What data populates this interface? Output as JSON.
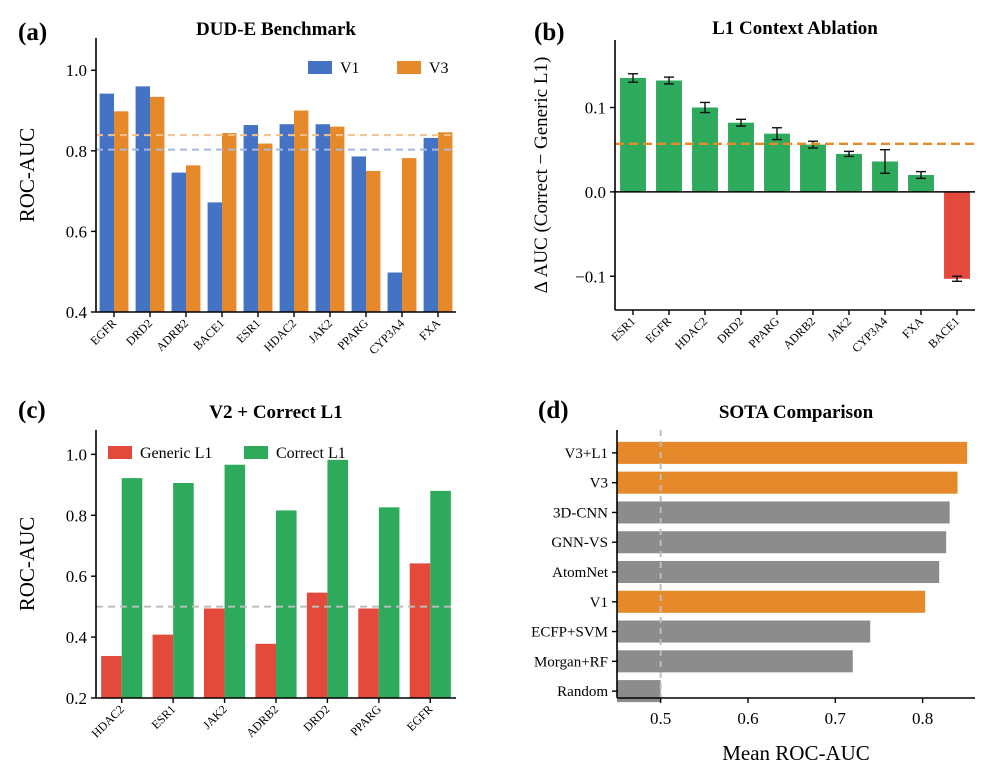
{
  "chart_data": [
    {
      "panel": "(a)",
      "type": "bar",
      "title": "DUD-E Benchmark",
      "xlabel": "",
      "ylabel": "ROC-AUC",
      "ylim": [
        0.4,
        1.08
      ],
      "yticks": [
        0.4,
        0.6,
        0.8,
        1.0
      ],
      "categories": [
        "EGFR",
        "DRD2",
        "ADRB2",
        "BACE1",
        "ESR1",
        "HDAC2",
        "JAK2",
        "PPARG",
        "CYP3A4",
        "FXA"
      ],
      "series": [
        {
          "name": "V1",
          "color": "#4472c4",
          "values": [
            0.942,
            0.96,
            0.746,
            0.672,
            0.864,
            0.866,
            0.866,
            0.786,
            0.498,
            0.832
          ]
        },
        {
          "name": "V3",
          "color": "#e6892a",
          "values": [
            0.898,
            0.934,
            0.764,
            0.844,
            0.818,
            0.9,
            0.86,
            0.75,
            0.782,
            0.846
          ]
        }
      ],
      "reference_lines": [
        {
          "value": 0.803,
          "color": "#a9b9dd"
        },
        {
          "value": 0.839,
          "color": "#f2c28f"
        }
      ],
      "legend_position": "top-right",
      "grid": false
    },
    {
      "panel": "(b)",
      "type": "bar",
      "title": "L1 Context Ablation",
      "xlabel": "",
      "ylabel": "Δ AUC (Correct − Generic L1)",
      "ylim": [
        -0.14,
        0.18
      ],
      "yticks": [
        -0.1,
        0.0,
        0.1
      ],
      "categories": [
        "ESR1",
        "EGFR",
        "HDAC2",
        "DRD2",
        "PPARG",
        "ADRB2",
        "JAK2",
        "CYP3A4",
        "FXA",
        "BACE1"
      ],
      "values": [
        0.135,
        0.132,
        0.1,
        0.082,
        0.069,
        0.056,
        0.045,
        0.036,
        0.02,
        -0.103
      ],
      "errors": [
        0.005,
        0.004,
        0.006,
        0.004,
        0.007,
        0.004,
        0.003,
        0.014,
        0.004,
        0.003
      ],
      "colors": {
        "positive": "#2eaa5c",
        "negative": "#e34a3c"
      },
      "reference_lines": [
        {
          "value": 0.057,
          "color": "#e6892a",
          "style": "dashed"
        }
      ],
      "grid": false
    },
    {
      "panel": "(c)",
      "type": "bar",
      "title": "V2 + Correct L1",
      "xlabel": "",
      "ylabel": "ROC-AUC",
      "ylim": [
        0.2,
        1.08
      ],
      "yticks": [
        0.2,
        0.4,
        0.6,
        0.8,
        1.0
      ],
      "categories": [
        "HDAC2",
        "ESR1",
        "JAK2",
        "ADRB2",
        "DRD2",
        "PPARG",
        "EGFR"
      ],
      "series": [
        {
          "name": "Generic L1",
          "color": "#e34a3c",
          "values": [
            0.338,
            0.408,
            0.494,
            0.378,
            0.546,
            0.494,
            0.642
          ]
        },
        {
          "name": "Correct L1",
          "color": "#2eaa5c",
          "values": [
            0.922,
            0.906,
            0.966,
            0.816,
            0.982,
            0.826,
            0.88
          ]
        }
      ],
      "reference_lines": [
        {
          "value": 0.5,
          "color": "#bdbdbd",
          "style": "dashed"
        }
      ],
      "legend_position": "top",
      "grid": false
    },
    {
      "panel": "(d)",
      "type": "bar",
      "orientation": "horizontal",
      "title": "SOTA Comparison",
      "xlabel": "Mean ROC-AUC",
      "ylabel": "",
      "xlim": [
        0.45,
        0.86
      ],
      "xticks": [
        0.5,
        0.6,
        0.7,
        0.8
      ],
      "categories": [
        "V3+L1",
        "V3",
        "3D-CNN",
        "GNN-VS",
        "AtomNet",
        "V1",
        "ECFP+SVM",
        "Morgan+RF",
        "Random"
      ],
      "values": [
        0.851,
        0.84,
        0.831,
        0.827,
        0.819,
        0.803,
        0.74,
        0.72,
        0.5
      ],
      "colors": [
        "#e6892a",
        "#e6892a",
        "#8c8c8c",
        "#8c8c8c",
        "#8c8c8c",
        "#e6892a",
        "#8c8c8c",
        "#8c8c8c",
        "#8c8c8c"
      ],
      "reference_lines": [
        {
          "value": 0.5,
          "color": "#bdbdbd",
          "style": "dashed"
        }
      ],
      "grid": false
    }
  ]
}
